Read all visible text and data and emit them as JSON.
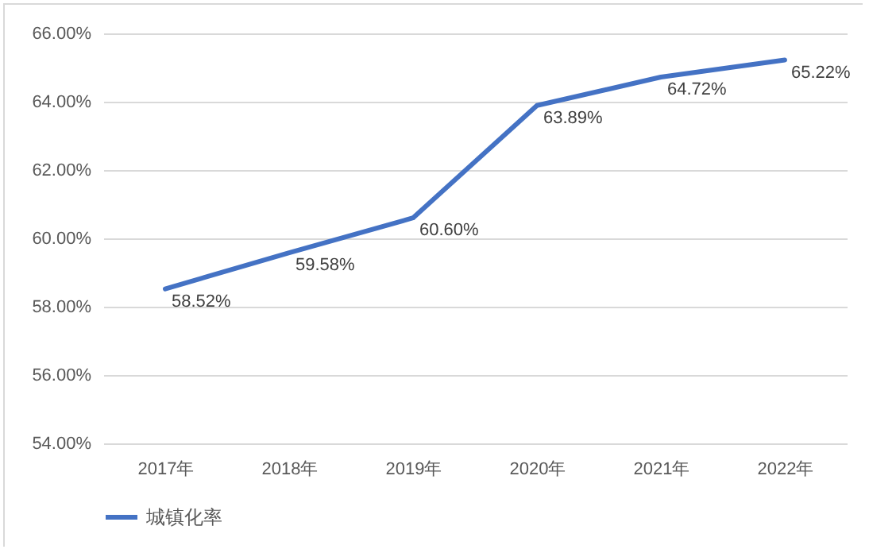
{
  "chart_data": {
    "type": "line",
    "categories": [
      "2017年",
      "2018年",
      "2019年",
      "2020年",
      "2021年",
      "2022年"
    ],
    "series": [
      {
        "name": "城镇化率",
        "color": "#4472c4",
        "values": [
          58.52,
          59.58,
          60.6,
          63.89,
          64.72,
          65.22
        ],
        "value_labels": [
          "58.52%",
          "59.58%",
          "60.60%",
          "63.89%",
          "64.72%",
          "65.22%"
        ]
      }
    ],
    "ylim": [
      54,
      66
    ],
    "yticks": [
      {
        "value": 54,
        "label": "54.00%"
      },
      {
        "value": 56,
        "label": "56.00%"
      },
      {
        "value": 58,
        "label": "58.00%"
      },
      {
        "value": 60,
        "label": "60.00%"
      },
      {
        "value": 62,
        "label": "62.00%"
      },
      {
        "value": 64,
        "label": "64.00%"
      },
      {
        "value": 66,
        "label": "66.00%"
      }
    ],
    "grid": "y",
    "legend": "bottom",
    "marker": "none",
    "line_style": "solid"
  }
}
